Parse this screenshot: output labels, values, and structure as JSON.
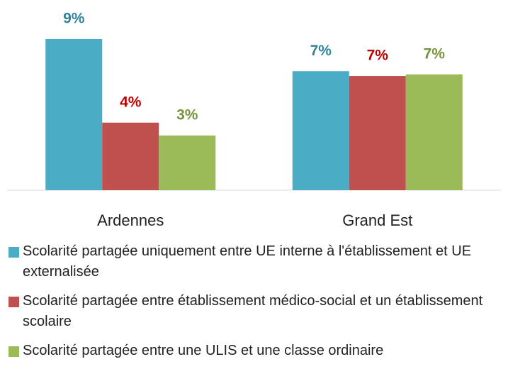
{
  "chart_data": {
    "type": "bar",
    "categories": [
      "Ardennes",
      "Grand Est"
    ],
    "series": [
      {
        "name": "Scolarité partagée uniquement entre UE interne à l'établissement et UE externalisée",
        "color": "#4bacc6",
        "label_color": "#31849b",
        "values": [
          9.4,
          7.4
        ],
        "value_labels": [
          "9%",
          "7%"
        ]
      },
      {
        "name": "Scolarité partagée entre établissement médico-social et un établissement scolaire",
        "color": "#c0504d",
        "label_color": "#c00000",
        "values": [
          4.2,
          7.1
        ],
        "value_labels": [
          "4%",
          "7%"
        ]
      },
      {
        "name": "Scolarité partagée entre une ULIS et une classe ordinaire",
        "color": "#9bbb59",
        "label_color": "#77933c",
        "values": [
          3.4,
          7.2
        ],
        "value_labels": [
          "3%",
          "7%"
        ]
      }
    ],
    "ylim": [
      0,
      10.5
    ]
  }
}
